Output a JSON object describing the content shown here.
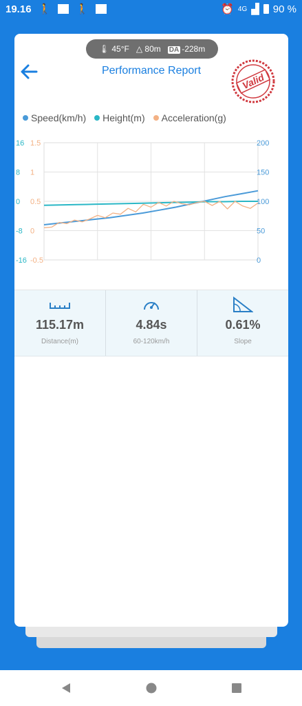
{
  "status_bar": {
    "time": "19.16",
    "network": "4G",
    "battery": "90 %"
  },
  "header": {
    "temperature": "45°F",
    "altitude": "80m",
    "da_badge": "DA",
    "density_altitude": "-228m",
    "title": "Performance Report",
    "stamp_text": "Valid"
  },
  "legend": {
    "speed": "Speed(km/h)",
    "height": "Height(m)",
    "acceleration": "Acceleration(g)"
  },
  "colors": {
    "speed": "#4a9ad8",
    "height": "#2ab7c6",
    "acceleration": "#f3b184",
    "accent": "#1a7fe0",
    "stamp": "#d0393f"
  },
  "chart_data": {
    "type": "line",
    "axes": {
      "height_left": {
        "ticks": [
          "16",
          "8",
          "0",
          "-8",
          "-16"
        ],
        "range": [
          -16,
          16
        ]
      },
      "acceleration_left": {
        "ticks": [
          "1.5",
          "1",
          "0.5",
          "0",
          "-0.5"
        ],
        "range": [
          -0.5,
          1.5
        ]
      },
      "speed_right": {
        "ticks": [
          "200",
          "150",
          "100",
          "50",
          "0"
        ],
        "range": [
          0,
          200
        ]
      }
    },
    "grid": true,
    "legend_position": "top",
    "series": [
      {
        "name": "Speed(km/h)",
        "axis": "speed_right",
        "values": [
          60,
          63,
          66,
          69,
          72,
          76,
          80,
          85,
          90,
          96,
          102,
          108,
          113,
          118
        ]
      },
      {
        "name": "Height(m)",
        "axis": "height_left",
        "values": [
          -1.1,
          -1.0,
          -0.9,
          -0.8,
          -0.7,
          -0.6,
          -0.5,
          -0.4,
          -0.3,
          -0.2,
          -0.1,
          -0.1,
          0,
          0
        ]
      },
      {
        "name": "Acceleration(g)",
        "axis": "acceleration_left",
        "values": [
          0.05,
          0.06,
          0.14,
          0.12,
          0.18,
          0.15,
          0.2,
          0.26,
          0.22,
          0.3,
          0.28,
          0.38,
          0.32,
          0.45,
          0.4,
          0.48,
          0.42,
          0.5,
          0.46,
          0.44,
          0.48,
          0.5,
          0.43,
          0.5,
          0.37,
          0.5,
          0.42,
          0.38,
          0.47
        ]
      }
    ]
  },
  "stats": [
    {
      "icon": "ruler-icon",
      "value": "115.17m",
      "label": "Distance(m)"
    },
    {
      "icon": "speedometer-icon",
      "value": "4.84s",
      "label": "60-120km/h"
    },
    {
      "icon": "slope-icon",
      "value": "0.61%",
      "label": "Slope"
    }
  ]
}
